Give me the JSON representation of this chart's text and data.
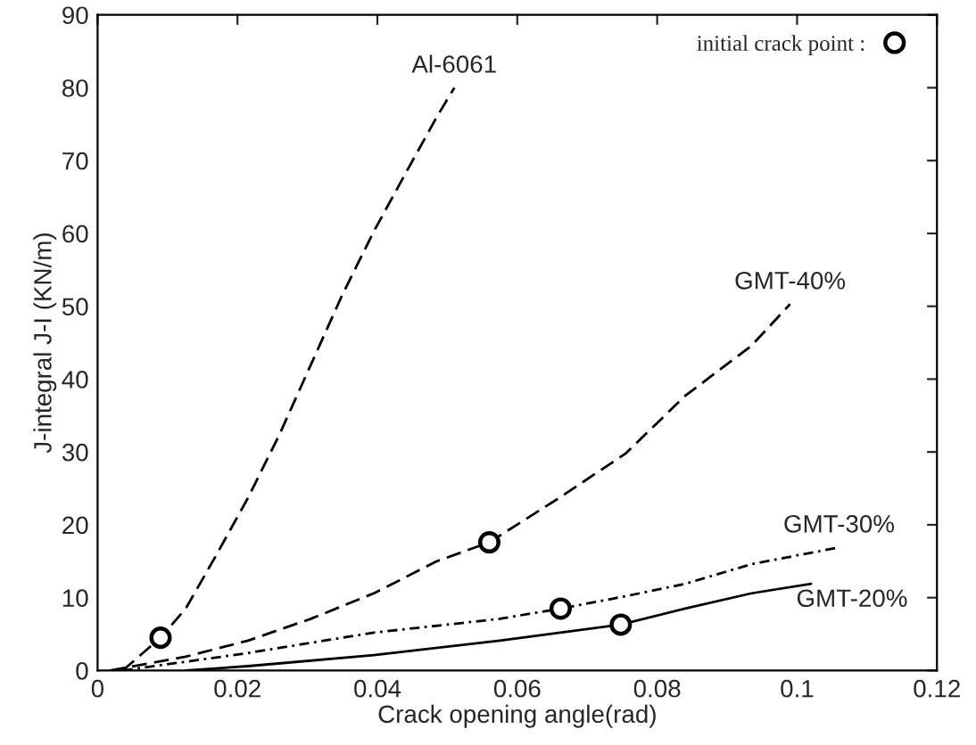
{
  "chart_data": {
    "type": "line",
    "xlabel": "Crack opening angle(rad)",
    "ylabel": "J-integral J-I (KN/m)",
    "xlim": [
      0,
      0.12
    ],
    "ylim": [
      0,
      90
    ],
    "xticks": [
      0,
      0.02,
      0.04,
      0.06,
      0.08,
      0.1,
      0.12
    ],
    "yticks": [
      0,
      10,
      20,
      30,
      40,
      50,
      60,
      70,
      80,
      90
    ],
    "grid": false,
    "legend": "top right",
    "series": [
      {
        "name": "Al-6061",
        "color": "#000000",
        "line_style": "dashed",
        "x": [
          0.0036,
          0.009,
          0.0126,
          0.017,
          0.0215,
          0.026,
          0.0305,
          0.035,
          0.0395,
          0.044,
          0.0485,
          0.051
        ],
        "values": [
          0,
          4.5,
          8.5,
          15.9,
          23.7,
          32.4,
          42,
          51.6,
          60.3,
          68.2,
          76,
          80
        ]
      },
      {
        "name": "GMT-40%",
        "color": "#000000",
        "line_style": "dashed",
        "x": [
          0.0018,
          0.0126,
          0.0215,
          0.0305,
          0.0395,
          0.0485,
          0.056,
          0.066,
          0.0755,
          0.084,
          0.0935,
          0.099
        ],
        "values": [
          0,
          1.9,
          4.1,
          7.1,
          10.6,
          15,
          17.6,
          23.7,
          29.8,
          37.7,
          44.6,
          50.3
        ]
      },
      {
        "name": "GMT-30%",
        "color": "#000000",
        "line_style": "dotted",
        "x": [
          0.0036,
          0.0215,
          0.0395,
          0.0575,
          0.0662,
          0.0755,
          0.084,
          0.0935,
          0.106
        ],
        "values": [
          0,
          2.4,
          5.2,
          7.1,
          8.5,
          10.2,
          11.9,
          14.6,
          16.9
        ]
      },
      {
        "name": "GMT-20%",
        "color": "#000000",
        "line_style": "solid",
        "x": [
          0.0126,
          0.0215,
          0.0395,
          0.0575,
          0.0748,
          0.084,
          0.0935,
          0.102
        ],
        "values": [
          0,
          0.6,
          2.1,
          4.1,
          6.3,
          8.5,
          10.6,
          11.9
        ]
      },
      {
        "name": "initial crack point :",
        "type": "scatter",
        "color": "#000000",
        "marker": "circle",
        "x": [
          0.009,
          0.056,
          0.0662,
          0.0748
        ],
        "values": [
          4.5,
          17.6,
          8.5,
          6.3
        ]
      }
    ]
  }
}
